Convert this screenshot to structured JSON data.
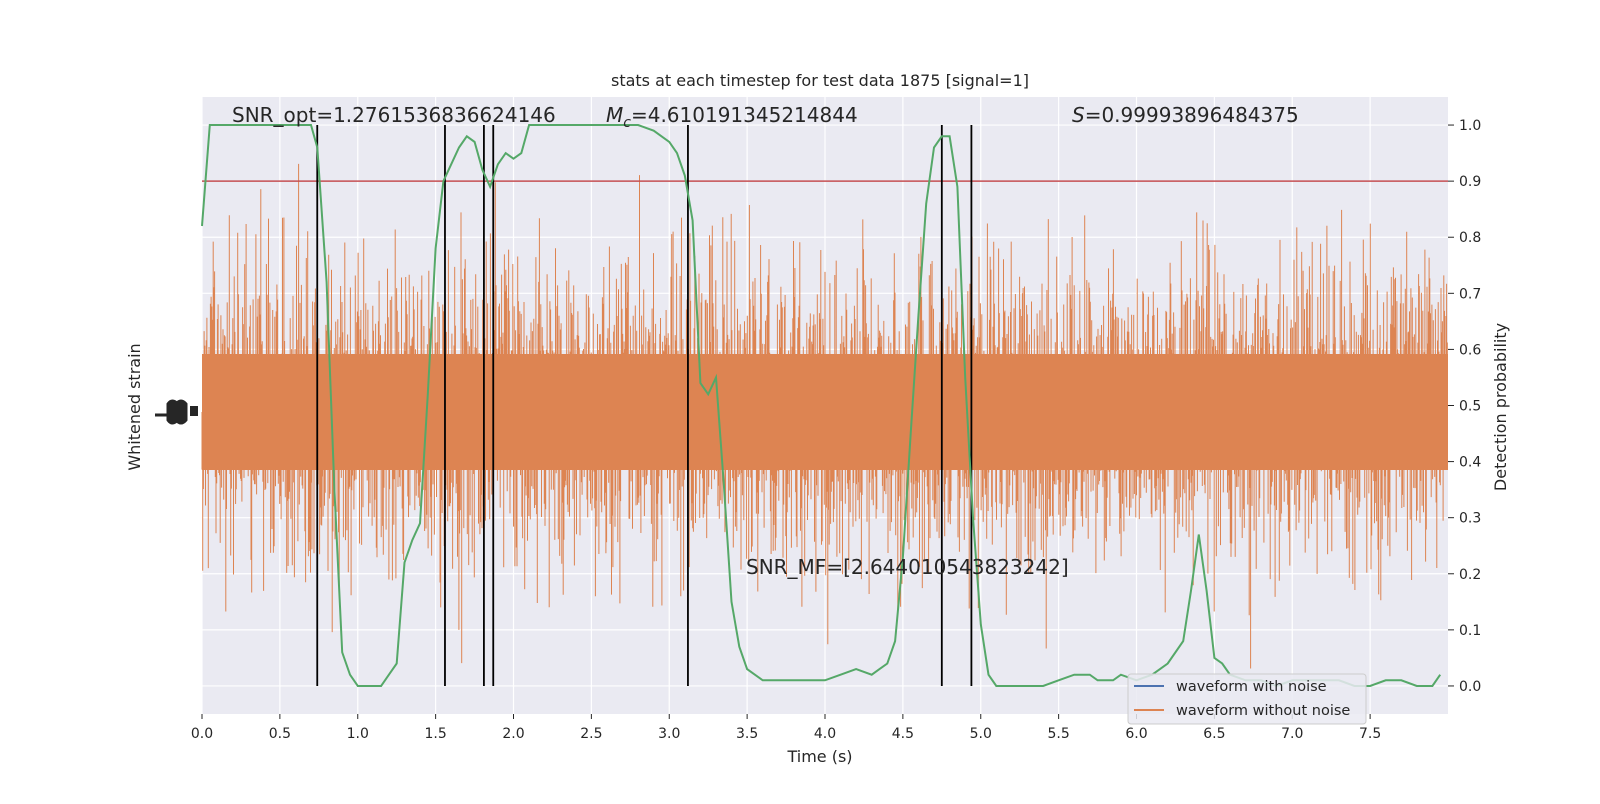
{
  "chart_data": {
    "type": "line",
    "title": "stats at each timestep for test data 1875 [signal=1]",
    "xlabel": "Time (s)",
    "ylabel_left": "Whitened strain",
    "ylabel_right": "Detection probability",
    "xlim": [
      0,
      8
    ],
    "ylim_right": [
      -0.05,
      1.05
    ],
    "x_ticks": [
      "0.0",
      "0.5",
      "1.0",
      "1.5",
      "2.0",
      "2.5",
      "3.0",
      "3.5",
      "4.0",
      "4.5",
      "5.0",
      "5.5",
      "6.0",
      "6.5",
      "7.0",
      "7.5"
    ],
    "y_ticks_right": [
      "0.0",
      "0.1",
      "0.2",
      "0.3",
      "0.4",
      "0.5",
      "0.6",
      "0.7",
      "0.8",
      "0.9",
      "1.0"
    ],
    "grid": true,
    "legend_position": "lower-right",
    "colors": {
      "background": "#eaeaf2",
      "grid": "#ffffff",
      "with_noise": "#4c72b0",
      "without_noise": "#dd8452",
      "probability": "#55a868",
      "threshold": "#c44e52",
      "event_lines": "#000000"
    },
    "annotations": {
      "snr_opt": "SNR_opt=1.2761536836624146",
      "mc_symbol": "M",
      "mc_subscript": "c",
      "mc_value": "=4.610191345214844",
      "s_symbol": "S",
      "s_value": "=0.99993896484375",
      "snr_mf": "SNR_MF=[2.644010543823242]"
    },
    "series": [
      {
        "name": "waveform with noise",
        "role": "strain"
      },
      {
        "name": "waveform without noise",
        "role": "strain"
      }
    ],
    "threshold": 0.9,
    "event_lines_x": [
      0.74,
      1.56,
      1.81,
      1.87,
      3.12,
      4.75,
      4.94
    ],
    "detection_probability": {
      "x": [
        0.0,
        0.05,
        0.1,
        0.2,
        0.3,
        0.4,
        0.5,
        0.6,
        0.65,
        0.7,
        0.74,
        0.8,
        0.85,
        0.9,
        0.95,
        1.0,
        1.05,
        1.1,
        1.15,
        1.2,
        1.25,
        1.3,
        1.35,
        1.4,
        1.45,
        1.5,
        1.55,
        1.6,
        1.65,
        1.7,
        1.75,
        1.8,
        1.85,
        1.9,
        1.95,
        2.0,
        2.05,
        2.1,
        2.15,
        2.2,
        2.3,
        2.4,
        2.5,
        2.6,
        2.7,
        2.8,
        2.9,
        3.0,
        3.05,
        3.1,
        3.15,
        3.2,
        3.25,
        3.3,
        3.35,
        3.4,
        3.45,
        3.5,
        3.55,
        3.6,
        3.7,
        3.8,
        3.9,
        4.0,
        4.1,
        4.2,
        4.3,
        4.35,
        4.4,
        4.45,
        4.5,
        4.55,
        4.6,
        4.65,
        4.7,
        4.75,
        4.8,
        4.85,
        4.9,
        4.95,
        5.0,
        5.05,
        5.1,
        5.15,
        5.2,
        5.25,
        5.3,
        5.4,
        5.5,
        5.6,
        5.7,
        5.75,
        5.8,
        5.85,
        5.9,
        6.0,
        6.1,
        6.2,
        6.3,
        6.35,
        6.4,
        6.45,
        6.5,
        6.55,
        6.6,
        6.7,
        6.8,
        6.9,
        7.0,
        7.1,
        7.2,
        7.3,
        7.4,
        7.5,
        7.6,
        7.7,
        7.8,
        7.9,
        7.95
      ],
      "y": [
        0.82,
        1.0,
        1.0,
        1.0,
        1.0,
        1.0,
        1.0,
        1.0,
        1.0,
        1.0,
        0.96,
        0.72,
        0.35,
        0.06,
        0.02,
        0.0,
        0.0,
        0.0,
        0.0,
        0.02,
        0.04,
        0.22,
        0.26,
        0.29,
        0.52,
        0.78,
        0.9,
        0.93,
        0.96,
        0.98,
        0.97,
        0.92,
        0.89,
        0.93,
        0.95,
        0.94,
        0.95,
        1.0,
        1.0,
        1.0,
        1.0,
        1.0,
        1.0,
        1.0,
        1.0,
        1.0,
        0.99,
        0.97,
        0.95,
        0.91,
        0.83,
        0.54,
        0.52,
        0.55,
        0.36,
        0.15,
        0.07,
        0.03,
        0.02,
        0.01,
        0.01,
        0.01,
        0.01,
        0.01,
        0.02,
        0.03,
        0.02,
        0.03,
        0.04,
        0.08,
        0.23,
        0.45,
        0.66,
        0.86,
        0.96,
        0.98,
        0.98,
        0.89,
        0.55,
        0.3,
        0.11,
        0.02,
        0.0,
        0.0,
        0.0,
        0.0,
        0.0,
        0.0,
        0.01,
        0.02,
        0.02,
        0.01,
        0.01,
        0.01,
        0.02,
        0.01,
        0.02,
        0.04,
        0.08,
        0.17,
        0.27,
        0.17,
        0.05,
        0.04,
        0.02,
        0.01,
        0.01,
        0.0,
        0.01,
        0.01,
        0.01,
        0.01,
        0.0,
        0.0,
        0.01,
        0.01,
        0.0,
        0.0,
        0.02
      ]
    }
  }
}
